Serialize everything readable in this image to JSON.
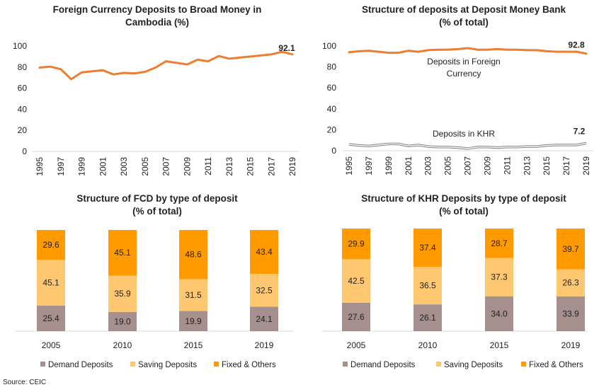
{
  "source": "Source: CEIC",
  "colors": {
    "line": "#ED7D31",
    "khr_line": "#7F7F7F",
    "demand": "#A5908D",
    "saving": "#FFC870",
    "fixed": "#FF9A00"
  },
  "chart_data": [
    {
      "type": "line",
      "title_lines": [
        "Foreign Currency Deposits to Broad Money in",
        "Cambodia (%)"
      ],
      "ylim": [
        0,
        100
      ],
      "yticks": [
        0,
        20,
        40,
        60,
        80,
        100
      ],
      "x": [
        1995,
        1996,
        1997,
        1998,
        1999,
        2000,
        2001,
        2002,
        2003,
        2004,
        2005,
        2006,
        2007,
        2008,
        2009,
        2010,
        2011,
        2012,
        2013,
        2014,
        2015,
        2016,
        2017,
        2018,
        2019
      ],
      "xticks": [
        "1995",
        "1997",
        "1999",
        "2001",
        "2003",
        "2005",
        "2007",
        "2009",
        "2011",
        "2013",
        "2015",
        "2017",
        "2019"
      ],
      "series": [
        {
          "values": [
            79.5,
            80.5,
            78,
            68.5,
            75,
            76,
            77,
            73,
            74.5,
            74,
            75.5,
            79.5,
            85.5,
            84,
            82.5,
            87,
            85.5,
            90.5,
            88,
            89,
            90,
            91,
            92,
            94.5,
            92.1
          ],
          "end_label": "92.1"
        }
      ]
    },
    {
      "type": "line",
      "title_lines": [
        "Structure of deposits at Deposit Money Bank",
        "(% of total)"
      ],
      "ylim": [
        0,
        100
      ],
      "yticks": [
        0,
        20,
        40,
        60,
        80,
        100
      ],
      "x": [
        1995,
        1996,
        1997,
        1998,
        1999,
        2000,
        2001,
        2002,
        2003,
        2004,
        2005,
        2006,
        2007,
        2008,
        2009,
        2010,
        2011,
        2012,
        2013,
        2014,
        2015,
        2016,
        2017,
        2018,
        2019
      ],
      "xticks": [
        "1995",
        "1997",
        "1999",
        "2001",
        "2003",
        "2005",
        "2007",
        "2009",
        "2011",
        "2013",
        "2015",
        "2017",
        "2019"
      ],
      "series": [
        {
          "name_lines": [
            "Deposits in Foreign",
            "Currency"
          ],
          "values": [
            94,
            95,
            95.5,
            94.5,
            93.5,
            93.5,
            95.5,
            94.5,
            96,
            96.5,
            96.5,
            97,
            98,
            96.5,
            96.5,
            97,
            96.5,
            96.5,
            96,
            96,
            95,
            94.5,
            94.5,
            94.5,
            92.8
          ],
          "end_label": "92.8"
        },
        {
          "name_lines": [
            "Deposits in KHR"
          ],
          "values": [
            6,
            5,
            4.5,
            5.5,
            6.5,
            6.5,
            4.5,
            5.5,
            4,
            3.5,
            3.5,
            3,
            2,
            3.5,
            3.5,
            3,
            3.5,
            3.5,
            4,
            4,
            5,
            5.5,
            5.5,
            5.5,
            7.2
          ],
          "end_label": "7.2"
        }
      ]
    },
    {
      "type": "bar",
      "stacked": true,
      "title_lines": [
        "Structure of FCD by type of deposit",
        "(% of total)"
      ],
      "categories": [
        "2005",
        "2010",
        "2015",
        "2019"
      ],
      "series": [
        {
          "name": "Demand Deposits",
          "values": [
            "25.4",
            "19.0",
            "19.9",
            "24.1"
          ]
        },
        {
          "name": "Saving Deposits",
          "values": [
            "45.1",
            "35.9",
            "31.5",
            "32.5"
          ]
        },
        {
          "name": "Fixed & Others",
          "values": [
            "29.6",
            "45.1",
            "48.6",
            "43.4"
          ]
        }
      ]
    },
    {
      "type": "bar",
      "stacked": true,
      "title_lines": [
        "Structure of KHR Deposits by type of deposit",
        "(% of total)"
      ],
      "categories": [
        "2005",
        "2010",
        "2015",
        "2019"
      ],
      "series": [
        {
          "name": "Demand Deposits",
          "values": [
            "27.6",
            "26.1",
            "34.0",
            "33.9"
          ]
        },
        {
          "name": "Saving Deposits",
          "values": [
            "42.5",
            "36.5",
            "37.3",
            "26.3"
          ]
        },
        {
          "name": "Fixed & Others",
          "values": [
            "29.9",
            "37.4",
            "28.7",
            "39.7"
          ]
        }
      ]
    }
  ]
}
